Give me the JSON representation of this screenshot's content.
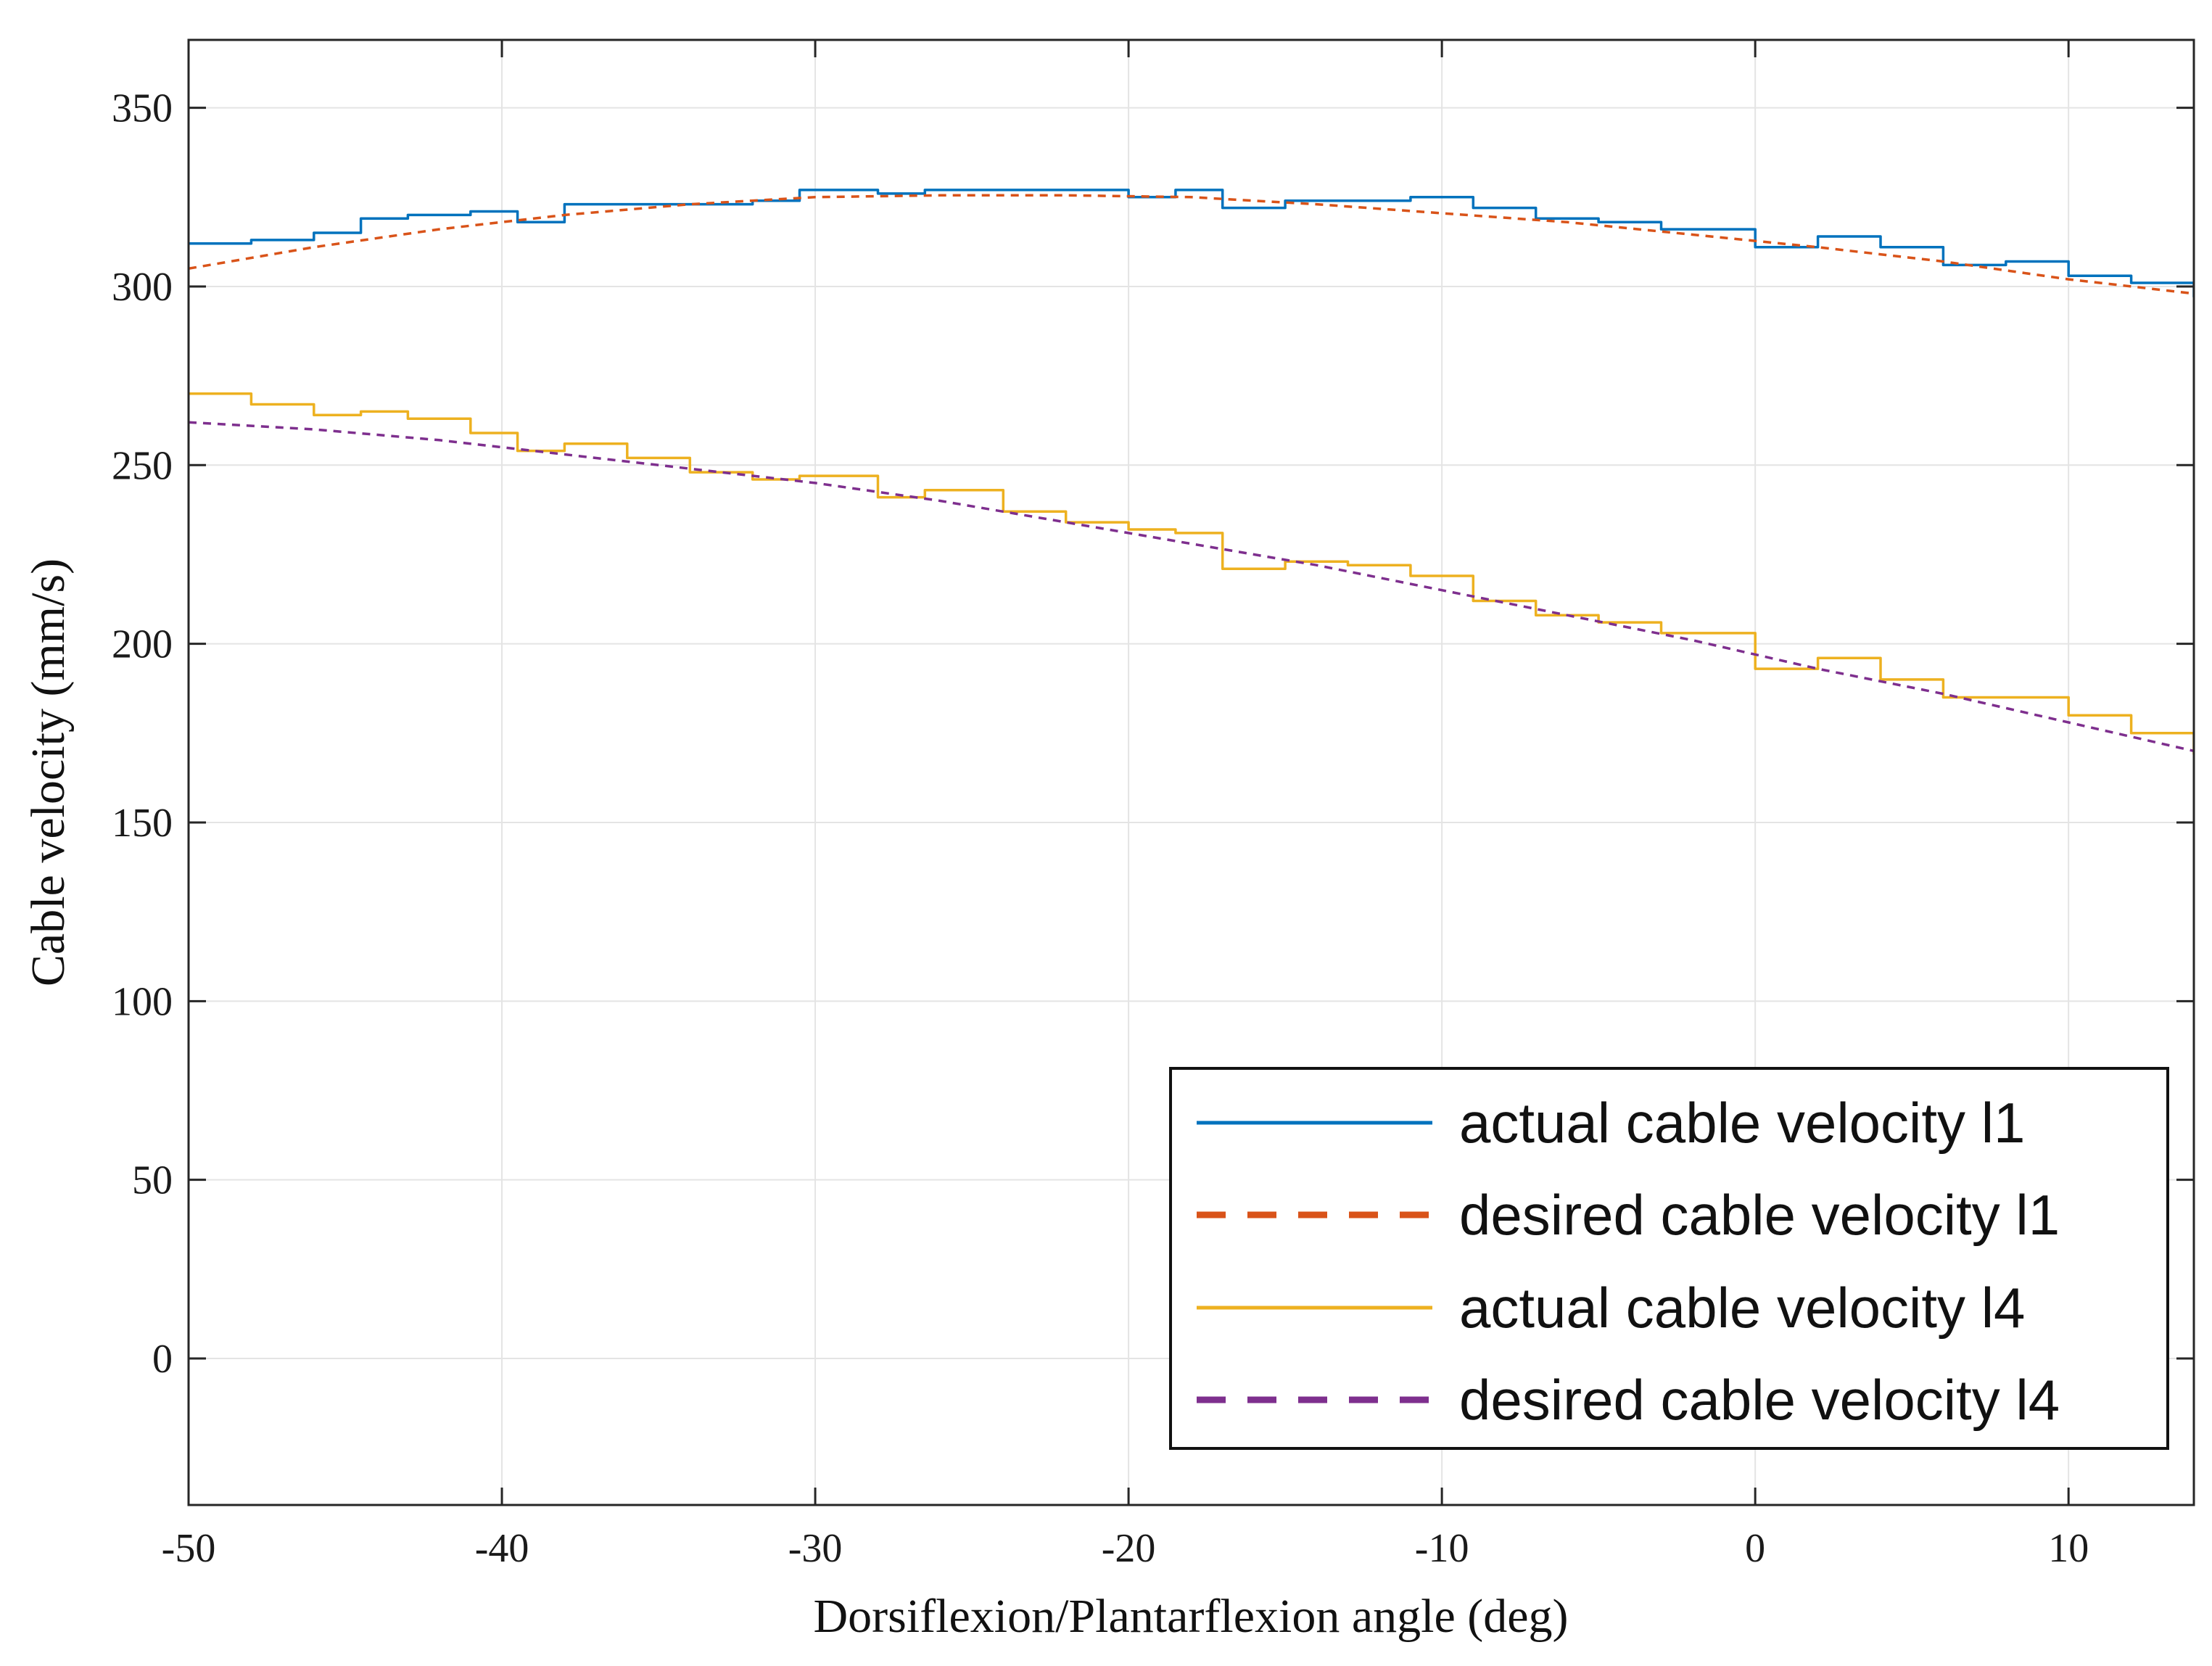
{
  "chart_data": {
    "type": "line",
    "title": "",
    "xlabel": "Dorsiflexion/Plantarflexion angle (deg)",
    "ylabel": "Cable velocity (mm/s)",
    "xlim": [
      -50,
      14
    ],
    "ylim": [
      -41,
      369
    ],
    "xticks": [
      -50,
      -40,
      -30,
      -20,
      -10,
      0,
      10
    ],
    "yticks": [
      0,
      50,
      100,
      150,
      200,
      250,
      300,
      350
    ],
    "xtick_labels": [
      "-50",
      "-40",
      "-30",
      "-20",
      "-10",
      "0",
      "10"
    ],
    "ytick_labels": [
      "0",
      "50",
      "100",
      "150",
      "200",
      "250",
      "300",
      "350"
    ],
    "grid": true,
    "legend_position": "bottom-right",
    "series": [
      {
        "name": "actual cable velocity l1",
        "color": "#0072BD",
        "dash": "solid",
        "x": [
          -50,
          -48,
          -46,
          -44.5,
          -43,
          -41,
          -39.5,
          -38,
          -36,
          -34,
          -32,
          -30.5,
          -28,
          -26.5,
          -24,
          -22,
          -20,
          -18.5,
          -17,
          -15,
          -13,
          -11,
          -9,
          -7,
          -5,
          -3,
          -1,
          0,
          2,
          4,
          6,
          8,
          10,
          12,
          14
        ],
        "values": [
          312,
          313,
          315,
          319,
          320,
          321,
          318,
          323,
          323,
          323,
          324,
          327,
          326,
          327,
          327,
          327,
          325,
          327,
          322,
          324,
          324,
          325,
          322,
          319,
          318,
          316,
          316,
          311,
          314,
          311,
          306,
          307,
          303,
          301,
          297
        ]
      },
      {
        "name": "desired cable velocity l1",
        "color": "#D95319",
        "dash": "dashed",
        "x": [
          -50,
          -46,
          -42,
          -38,
          -34,
          -30,
          -26,
          -22,
          -18,
          -14,
          -10,
          -6,
          -2,
          2,
          6,
          10,
          14
        ],
        "values": [
          305,
          311,
          316,
          320,
          323,
          325,
          325.5,
          325.5,
          325,
          323,
          320.5,
          318,
          314.5,
          311,
          307,
          302,
          298
        ]
      },
      {
        "name": "actual cable velocity l4",
        "color": "#EDB120",
        "dash": "solid",
        "x": [
          -50,
          -48,
          -46,
          -44.5,
          -43,
          -41,
          -39.5,
          -38,
          -36,
          -34,
          -32,
          -30.5,
          -28,
          -26.5,
          -24,
          -22,
          -20,
          -18.5,
          -17,
          -15,
          -13,
          -11,
          -9,
          -7,
          -5,
          -3,
          -1,
          0,
          2,
          4,
          6,
          8,
          10,
          12,
          14
        ],
        "values": [
          270,
          267,
          264,
          265,
          263,
          259,
          254,
          256,
          252,
          248,
          246,
          247,
          241,
          243,
          237,
          234,
          232,
          231,
          221,
          223,
          222,
          219,
          212,
          208,
          206,
          203,
          203,
          193,
          196,
          190,
          185,
          185,
          180,
          175,
          169
        ]
      },
      {
        "name": "desired cable velocity l4",
        "color": "#7E2F8E",
        "dash": "dashed",
        "x": [
          -50,
          -46,
          -42,
          -38,
          -34,
          -30,
          -26,
          -22,
          -18,
          -14,
          -10,
          -6,
          -2,
          2,
          6,
          10,
          14
        ],
        "values": [
          262,
          260,
          257,
          253,
          249,
          245,
          240,
          234,
          228,
          222,
          215,
          208,
          201,
          193,
          186,
          178,
          170
        ]
      }
    ]
  }
}
